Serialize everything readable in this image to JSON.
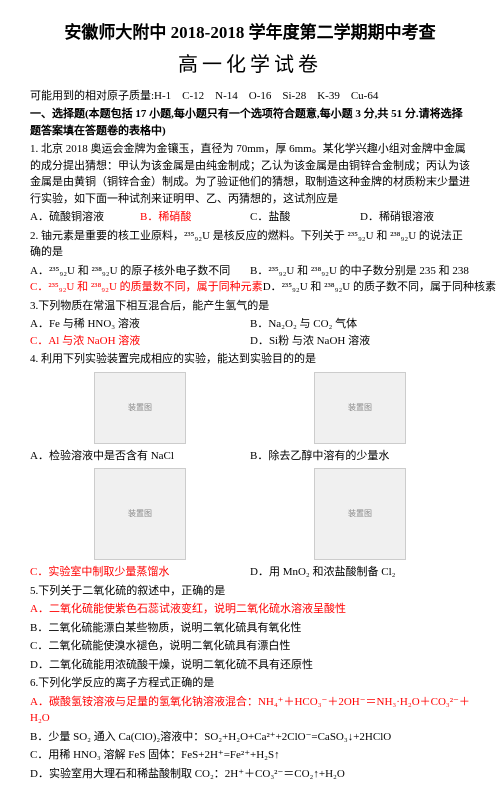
{
  "header": {
    "title": "安徽师大附中 2018-2018 学年度第二学期期中考查",
    "subtitle": "高一化学试卷"
  },
  "atomic_masses": "可能用到的相对原子质量:H-1　C-12　N-14　O-16　Si-28　K-39　Cu-64",
  "section1_head": "一、选择题(本题包括 17 小题,每小题只有一个选项符合题意,每小题 3 分,共 51 分.请将选择题答案填在答题卷的表格中)",
  "q1": {
    "text": "1. 北京 2018 奥运会金牌为金镶玉，直径为 70mm，厚 6mm。某化学兴趣小组对金牌中金属的成分提出猜想：甲认为该金属是由纯金制成；乙认为该金属是由铜锌合金制成；丙认为该金属是由黄铜（铜锌合金）制成。为了验证他们的猜想，取制造这种金牌的材质粉末少量进行实验，如下面一种试剂来证明甲、乙、丙猜想的，这试剂应是",
    "A": "A．硫酸铜溶液",
    "B": "B．稀硝酸",
    "C": "C．盐酸",
    "D": "D．稀硝银溶液"
  },
  "q2": {
    "text": "2. 铀元素是重要的核工业原料，²³⁵₉₂U 是核反应的燃料。下列关于 ²³⁵₉₂U 和 ²³⁸₉₂U 的说法正确的是",
    "A": "A．²³⁵₉₂U 和 ²³⁸₉₂U 的原子核外电子数不同",
    "B": "B．²³⁵₉₂U 和 ²³⁸₉₂U 的中子数分别是 235 和 238",
    "C": "C．²³⁵₉₂U 和 ²³⁸₉₂U 的质量数不同，属于同种元素",
    "D": "D．²³⁵₉₂U 和 ²³⁸₉₂U 的质子数不同，属于同种核素"
  },
  "q3": {
    "text": "3.下列物质在常温下相互混合后，能产生氢气的是",
    "A": "A．Fe 与稀 HNO₃ 溶液",
    "B": "B．Na₂O₂ 与 CO₂ 气体",
    "C": "C．Al 与浓 NaOH 溶液",
    "D": "D．Si粉 与浓 NaOH 溶液"
  },
  "q4": {
    "text": "4. 利用下列实验装置完成相应的实验，能达到实验目的的是",
    "A": "A．检验溶液中是否含有 NaCl",
    "B": "B．除去乙醇中溶有的少量水",
    "C": "C．实验室中制取少量蒸馏水",
    "D": "D．用 MnO₂ 和浓盐酸制备 Cl₂"
  },
  "q5": {
    "text": "5.下列关于二氧化硫的叙述中，正确的是",
    "A": "A．二氧化硫能使紫色石蕊试液变红，说明二氧化硫水溶液呈酸性",
    "B": "B．二氧化硫能漂白某些物质，说明二氧化硫具有氧化性",
    "C": "C．二氧化硫能使溴水褪色，说明二氧化硫具有漂白性",
    "D": "D．二氧化硫能用浓硫酸干燥，说明二氧化硫不具有还原性"
  },
  "q6": {
    "text": "6.下列化学反应的离子方程式正确的是",
    "A": "A．碳酸氢铵溶液与足量的氢氧化钠溶液混合：NH₄⁺＋HCO₃⁻＋2OH⁻＝NH₃·H₂O＋CO₃²⁻＋H₂O",
    "B": "B．少量 SO₂ 通入 Ca(ClO)₂溶液中：SO₂+H₂O+Ca²⁺+2ClO⁻=CaSO₃↓+2HClO",
    "C": "C．用稀 HNO₃ 溶解 FeS 固体：FeS+2H⁺=Fe²⁺+H₂S↑",
    "D": "D．实验室用大理石和稀盐酸制取 CO₂：2H⁺＋CO₃²⁻＝CO₂↑+H₂O"
  }
}
